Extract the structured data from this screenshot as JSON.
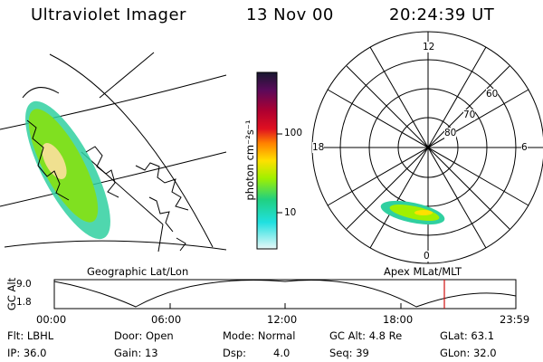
{
  "header": {
    "title": "Ultraviolet Imager",
    "date": "13 Nov 00",
    "time": "20:24:39 UT"
  },
  "map": {
    "caption": "Geographic Lat/Lon"
  },
  "colorbar": {
    "unit_label": "photon cm⁻²s⁻¹",
    "ticks": [
      "100",
      "10"
    ],
    "colors": [
      "#202040",
      "#5a0a5a",
      "#b00030",
      "#e01020",
      "#ff8000",
      "#ffe000",
      "#a0f000",
      "#20d080",
      "#20e0e0",
      "#d0f0f0"
    ]
  },
  "polar": {
    "caption": "Apex MLat/MLT",
    "mlt_labels": {
      "top": "12",
      "left": "18",
      "right": "6",
      "bottom": "0"
    },
    "lat_labels": [
      "60",
      "70",
      "80"
    ]
  },
  "timeline": {
    "y_label": "GC Alt",
    "y_ticks": [
      "9.0",
      "1.8"
    ],
    "x_ticks": [
      "00:00",
      "06:00",
      "12:00",
      "18:00",
      "23:59"
    ],
    "marker_time": "20:24",
    "marker_color": "#d01010"
  },
  "info": {
    "col1": [
      "Flt: LBHL",
      "IP: 36.0"
    ],
    "col2": [
      "Door: Open",
      "Gain: 13"
    ],
    "col3": [
      "Mode: Normal",
      "Dsp:",
      "4.0"
    ],
    "col4": [
      "GC Alt: 4.8 Re",
      "Seq: 39"
    ],
    "col5": [
      "GLat: 63.1",
      "GLon: 32.0"
    ]
  }
}
